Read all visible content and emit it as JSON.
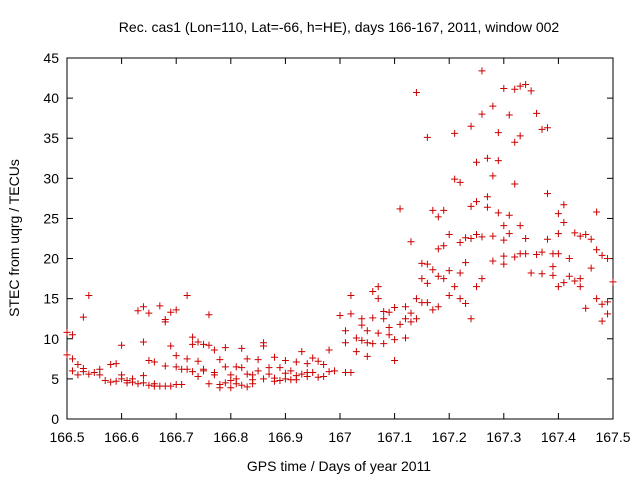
{
  "chart_data": {
    "type": "scatter",
    "title": "Rec. cas1 (Lon=110, Lat=-66, h=HE), days 166-167, 2011, window 002",
    "xlabel": "GPS time / Days of year 2011",
    "ylabel": "STEC from uqrg / TECUs",
    "xlim": [
      166.5,
      167.5
    ],
    "ylim": [
      0,
      45
    ],
    "xticks": [
      "166.5",
      "166.6",
      "166.7",
      "166.8",
      "166.9",
      "167",
      "167.1",
      "167.2",
      "167.3",
      "167.4",
      "167.5"
    ],
    "yticks": [
      "0",
      "5",
      "10",
      "15",
      "20",
      "25",
      "30",
      "35",
      "40",
      "45"
    ],
    "marker": "+",
    "color": "#cc0000",
    "grid": false,
    "series": [
      {
        "name": "STEC",
        "points": [
          [
            166.5,
            10.8
          ],
          [
            166.5,
            8.0
          ],
          [
            166.51,
            6.0
          ],
          [
            166.51,
            10.5
          ],
          [
            166.51,
            7.5
          ],
          [
            166.52,
            6.8
          ],
          [
            166.52,
            5.5
          ],
          [
            166.53,
            12.7
          ],
          [
            166.53,
            6.3
          ],
          [
            166.53,
            5.9
          ],
          [
            166.54,
            15.4
          ],
          [
            166.54,
            5.6
          ],
          [
            166.55,
            5.8
          ],
          [
            166.56,
            6.2
          ],
          [
            166.56,
            5.5
          ],
          [
            166.57,
            4.8
          ],
          [
            166.58,
            6.8
          ],
          [
            166.58,
            4.6
          ],
          [
            166.59,
            6.9
          ],
          [
            166.59,
            4.7
          ],
          [
            166.6,
            9.2
          ],
          [
            166.6,
            5.5
          ],
          [
            166.6,
            5.0
          ],
          [
            166.61,
            4.8
          ],
          [
            166.61,
            4.5
          ],
          [
            166.62,
            5.0
          ],
          [
            166.62,
            4.6
          ],
          [
            166.63,
            4.4
          ],
          [
            166.63,
            13.5
          ],
          [
            166.64,
            14.0
          ],
          [
            166.64,
            9.6
          ],
          [
            166.64,
            5.4
          ],
          [
            166.64,
            4.5
          ],
          [
            166.65,
            13.2
          ],
          [
            166.65,
            7.3
          ],
          [
            166.65,
            4.2
          ],
          [
            166.66,
            4.4
          ],
          [
            166.66,
            7.1
          ],
          [
            166.66,
            4.1
          ],
          [
            166.67,
            14.1
          ],
          [
            166.67,
            4.1
          ],
          [
            166.68,
            4.1
          ],
          [
            166.68,
            6.6
          ],
          [
            166.68,
            12.1
          ],
          [
            166.68,
            12.4
          ],
          [
            166.69,
            4.1
          ],
          [
            166.69,
            13.3
          ],
          [
            166.69,
            9.1
          ],
          [
            166.7,
            13.6
          ],
          [
            166.7,
            7.9
          ],
          [
            166.7,
            4.3
          ],
          [
            166.7,
            6.5
          ],
          [
            166.71,
            6.2
          ],
          [
            166.71,
            4.3
          ],
          [
            166.72,
            7.5
          ],
          [
            166.72,
            15.4
          ],
          [
            166.72,
            6.2
          ],
          [
            166.73,
            10.2
          ],
          [
            166.73,
            9.3
          ],
          [
            166.73,
            5.9
          ],
          [
            166.74,
            5.3
          ],
          [
            166.74,
            9.6
          ],
          [
            166.74,
            7.2
          ],
          [
            166.75,
            6.2
          ],
          [
            166.75,
            9.3
          ],
          [
            166.75,
            6.0
          ],
          [
            166.76,
            13.0
          ],
          [
            166.76,
            9.2
          ],
          [
            166.76,
            4.4
          ],
          [
            166.77,
            5.8
          ],
          [
            166.77,
            8.6
          ],
          [
            166.77,
            5.5
          ],
          [
            166.78,
            7.4
          ],
          [
            166.78,
            4.3
          ],
          [
            166.78,
            3.9
          ],
          [
            166.79,
            6.5
          ],
          [
            166.79,
            4.5
          ],
          [
            166.79,
            8.9
          ],
          [
            166.8,
            5.5
          ],
          [
            166.8,
            3.9
          ],
          [
            166.8,
            4.8
          ],
          [
            166.81,
            6.5
          ],
          [
            166.81,
            5.0
          ],
          [
            166.81,
            4.4
          ],
          [
            166.82,
            6.4
          ],
          [
            166.82,
            4.2
          ],
          [
            166.82,
            8.8
          ],
          [
            166.83,
            5.6
          ],
          [
            166.83,
            4.0
          ],
          [
            166.83,
            7.5
          ],
          [
            166.84,
            5.5
          ],
          [
            166.84,
            4.9
          ],
          [
            166.84,
            4.4
          ],
          [
            166.85,
            7.4
          ],
          [
            166.85,
            6.0
          ],
          [
            166.86,
            5.0
          ],
          [
            166.86,
            9.5
          ],
          [
            166.86,
            9.1
          ],
          [
            166.87,
            5.6
          ],
          [
            166.87,
            6.4
          ],
          [
            166.88,
            5.1
          ],
          [
            166.88,
            4.7
          ],
          [
            166.88,
            7.7
          ],
          [
            166.89,
            6.4
          ],
          [
            166.89,
            4.8
          ],
          [
            166.9,
            7.3
          ],
          [
            166.9,
            5.0
          ],
          [
            166.9,
            5.7
          ],
          [
            166.91,
            6.0
          ],
          [
            166.91,
            4.9
          ],
          [
            166.92,
            5.4
          ],
          [
            166.92,
            7.1
          ],
          [
            166.92,
            4.9
          ],
          [
            166.93,
            5.6
          ],
          [
            166.93,
            8.4
          ],
          [
            166.94,
            6.9
          ],
          [
            166.94,
            5.3
          ],
          [
            166.94,
            5.8
          ],
          [
            166.95,
            7.6
          ],
          [
            166.95,
            5.8
          ],
          [
            166.96,
            5.2
          ],
          [
            166.96,
            7.2
          ],
          [
            166.97,
            6.8
          ],
          [
            166.97,
            5.3
          ],
          [
            166.98,
            5.9
          ],
          [
            166.98,
            8.6
          ],
          [
            166.99,
            6.0
          ],
          [
            167.0,
            12.9
          ],
          [
            167.01,
            9.5
          ],
          [
            167.01,
            5.8
          ],
          [
            167.01,
            11.0
          ],
          [
            167.02,
            5.8
          ],
          [
            167.02,
            15.4
          ],
          [
            167.02,
            13.1
          ],
          [
            167.03,
            10.1
          ],
          [
            167.03,
            8.4
          ],
          [
            167.04,
            11.7
          ],
          [
            167.04,
            9.8
          ],
          [
            167.04,
            12.5
          ],
          [
            167.05,
            7.8
          ],
          [
            167.05,
            9.5
          ],
          [
            167.05,
            11.0
          ],
          [
            167.06,
            12.6
          ],
          [
            167.06,
            15.9
          ],
          [
            167.06,
            9.4
          ],
          [
            167.07,
            10.7
          ],
          [
            167.07,
            15.0
          ],
          [
            167.07,
            16.5
          ],
          [
            167.08,
            9.4
          ],
          [
            167.08,
            12.5
          ],
          [
            167.08,
            13.4
          ],
          [
            167.09,
            10.5
          ],
          [
            167.09,
            11.4
          ],
          [
            167.09,
            13.3
          ],
          [
            167.1,
            9.9
          ],
          [
            167.1,
            7.3
          ],
          [
            167.1,
            13.9
          ],
          [
            167.11,
            11.8
          ],
          [
            167.11,
            26.2
          ],
          [
            167.12,
            10.1
          ],
          [
            167.12,
            12.5
          ],
          [
            167.12,
            14.0
          ],
          [
            167.13,
            13.2
          ],
          [
            167.13,
            22.1
          ],
          [
            167.13,
            12.1
          ],
          [
            167.14,
            12.5
          ],
          [
            167.14,
            15.0
          ],
          [
            167.14,
            40.7
          ],
          [
            167.15,
            17.5
          ],
          [
            167.15,
            14.5
          ],
          [
            167.15,
            19.4
          ],
          [
            167.16,
            35.1
          ],
          [
            167.16,
            16.9
          ],
          [
            167.16,
            14.5
          ],
          [
            167.16,
            19.3
          ],
          [
            167.17,
            26.0
          ],
          [
            167.17,
            18.6
          ],
          [
            167.17,
            13.6
          ],
          [
            167.18,
            17.8
          ],
          [
            167.18,
            21.2
          ],
          [
            167.18,
            14.0
          ],
          [
            167.18,
            25.2
          ],
          [
            167.19,
            17.5
          ],
          [
            167.19,
            21.6
          ],
          [
            167.19,
            26.0
          ],
          [
            167.2,
            18.5
          ],
          [
            167.2,
            15.4
          ],
          [
            167.2,
            23.0
          ],
          [
            167.21,
            16.5
          ],
          [
            167.21,
            29.9
          ],
          [
            167.21,
            35.6
          ],
          [
            167.22,
            22.0
          ],
          [
            167.22,
            18.2
          ],
          [
            167.22,
            15.0
          ],
          [
            167.22,
            29.5
          ],
          [
            167.23,
            22.6
          ],
          [
            167.23,
            14.4
          ],
          [
            167.23,
            19.5
          ],
          [
            167.24,
            36.5
          ],
          [
            167.24,
            26.5
          ],
          [
            167.24,
            22.5
          ],
          [
            167.24,
            12.5
          ],
          [
            167.25,
            27.1
          ],
          [
            167.25,
            16.5
          ],
          [
            167.25,
            23.0
          ],
          [
            167.25,
            32.0
          ],
          [
            167.26,
            43.4
          ],
          [
            167.26,
            38.0
          ],
          [
            167.26,
            22.7
          ],
          [
            167.26,
            17.5
          ],
          [
            167.27,
            32.5
          ],
          [
            167.27,
            26.4
          ],
          [
            167.27,
            27.7
          ],
          [
            167.28,
            39.0
          ],
          [
            167.28,
            30.3
          ],
          [
            167.28,
            19.7
          ],
          [
            167.28,
            22.8
          ],
          [
            167.29,
            25.7
          ],
          [
            167.29,
            32.2
          ],
          [
            167.29,
            35.7
          ],
          [
            167.3,
            41.2
          ],
          [
            167.3,
            22.3
          ],
          [
            167.3,
            19.3
          ],
          [
            167.3,
            20.3
          ],
          [
            167.3,
            24.1
          ],
          [
            167.31,
            25.4
          ],
          [
            167.31,
            37.9
          ],
          [
            167.31,
            23.1
          ],
          [
            167.32,
            41.1
          ],
          [
            167.32,
            34.5
          ],
          [
            167.32,
            29.3
          ],
          [
            167.32,
            20.2
          ],
          [
            167.33,
            35.3
          ],
          [
            167.33,
            41.5
          ],
          [
            167.33,
            20.6
          ],
          [
            167.33,
            24.1
          ],
          [
            167.34,
            22.5
          ],
          [
            167.34,
            41.7
          ],
          [
            167.34,
            20.6
          ],
          [
            167.35,
            40.9
          ],
          [
            167.35,
            18.2
          ],
          [
            167.36,
            38.1
          ],
          [
            167.36,
            20.5
          ],
          [
            167.37,
            18.1
          ],
          [
            167.37,
            36.1
          ],
          [
            167.37,
            20.8
          ],
          [
            167.38,
            36.3
          ],
          [
            167.38,
            22.4
          ],
          [
            167.38,
            28.1
          ],
          [
            167.39,
            17.9
          ],
          [
            167.39,
            20.6
          ],
          [
            167.39,
            19.0
          ],
          [
            167.4,
            25.6
          ],
          [
            167.4,
            16.5
          ],
          [
            167.4,
            23.1
          ],
          [
            167.4,
            20.6
          ],
          [
            167.41,
            24.5
          ],
          [
            167.41,
            17.0
          ],
          [
            167.41,
            26.7
          ],
          [
            167.42,
            20.0
          ],
          [
            167.42,
            17.8
          ],
          [
            167.43,
            23.2
          ],
          [
            167.43,
            17.2
          ],
          [
            167.44,
            22.8
          ],
          [
            167.44,
            16.5
          ],
          [
            167.44,
            17.5
          ],
          [
            167.45,
            23.0
          ],
          [
            167.45,
            13.8
          ],
          [
            167.46,
            18.8
          ],
          [
            167.46,
            22.4
          ],
          [
            167.47,
            25.8
          ],
          [
            167.47,
            15.0
          ],
          [
            167.47,
            21.1
          ],
          [
            167.48,
            12.2
          ],
          [
            167.48,
            14.3
          ],
          [
            167.48,
            20.4
          ],
          [
            167.49,
            13.1
          ],
          [
            167.49,
            14.6
          ],
          [
            167.49,
            20.0
          ],
          [
            167.5,
            17.1
          ]
        ]
      }
    ]
  }
}
